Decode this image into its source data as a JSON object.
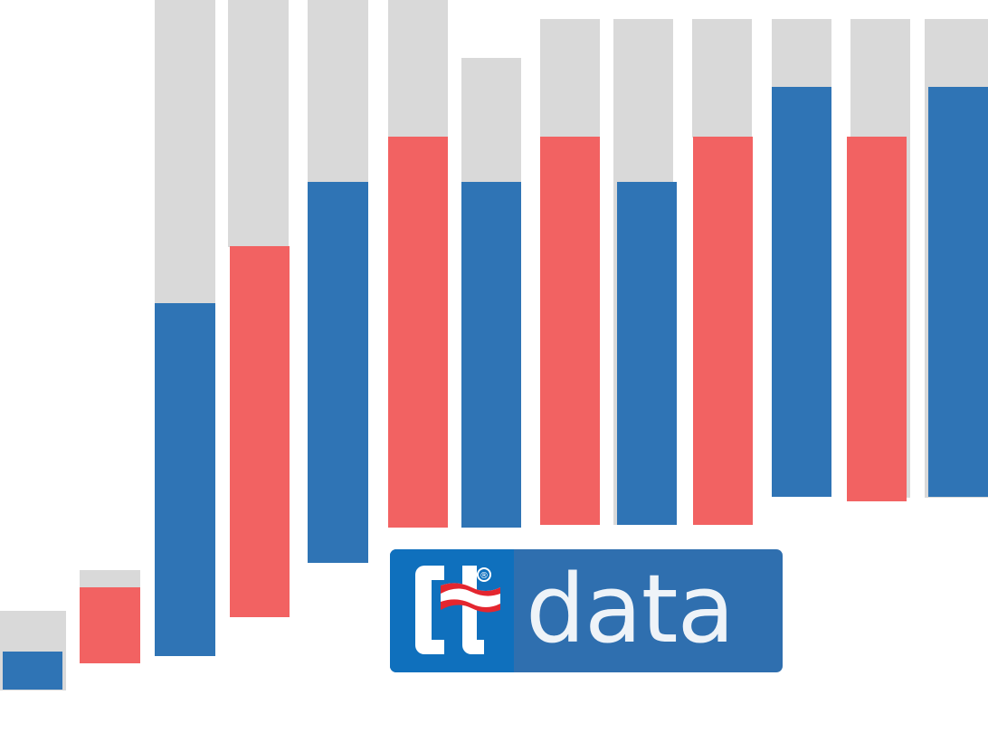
{
  "logo": {
    "mark_text": "Ct",
    "registered_symbol": "®",
    "wordmark": "data"
  },
  "colors": {
    "blue": "#2f74b5",
    "red": "#f26262",
    "grey": "#d9d9d9",
    "logo_bg": "#2f6faf",
    "logo_mark_bg": "#0f70bd"
  }
}
